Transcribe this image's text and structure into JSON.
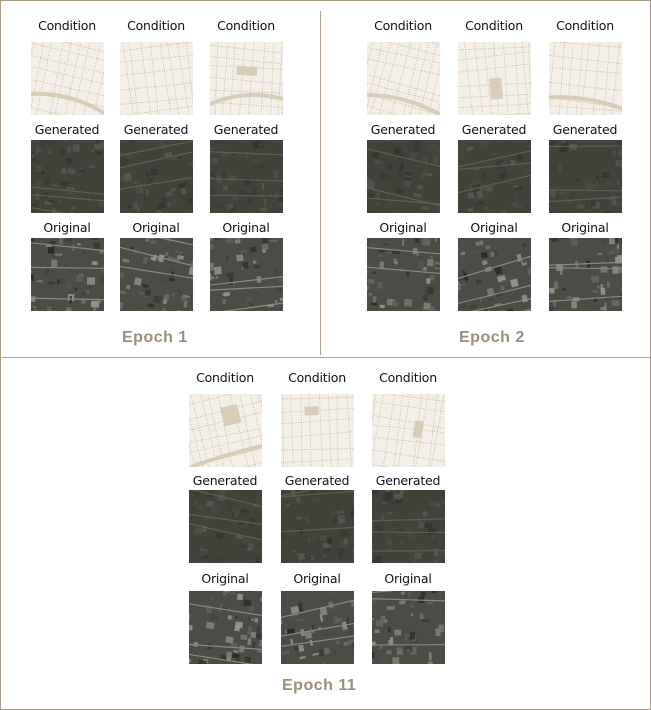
{
  "labels": {
    "condition": "Condition",
    "generated": "Generated",
    "original": "Original"
  },
  "panels": [
    {
      "id": "epoch-1",
      "title": "Epoch 1",
      "columns": [
        {
          "condition": "Condition",
          "generated": "Generated",
          "original": "Original"
        },
        {
          "condition": "Condition",
          "generated": "Generated",
          "original": "Original"
        },
        {
          "condition": "Condition",
          "generated": "Generated",
          "original": "Original"
        }
      ]
    },
    {
      "id": "epoch-2",
      "title": "Epoch 2",
      "columns": [
        {
          "condition": "Condition",
          "generated": "Generated",
          "original": "Original"
        },
        {
          "condition": "Condition",
          "generated": "Generated",
          "original": "Original"
        },
        {
          "condition": "Condition",
          "generated": "Generated",
          "original": "Original"
        }
      ]
    },
    {
      "id": "epoch-11",
      "title": "Epoch 11",
      "columns": [
        {
          "condition": "Condition",
          "generated": "Generated",
          "original": "Original"
        },
        {
          "condition": "Condition",
          "generated": "Generated",
          "original": "Original"
        },
        {
          "condition": "Condition",
          "generated": "Generated",
          "original": "Original"
        }
      ]
    }
  ],
  "colors": {
    "condition_bg": "#f3efe8",
    "condition_street": "#c8bca6",
    "condition_block": "#d7cdb9",
    "generated_bg": "#3f4339",
    "original_bg": "#4a4c46",
    "epoch_text": "#9c8e79",
    "divider": "#b5a48c"
  }
}
